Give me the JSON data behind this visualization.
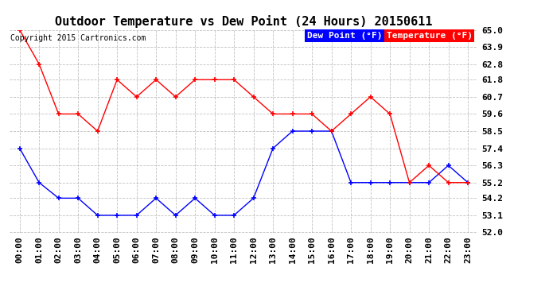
{
  "title": "Outdoor Temperature vs Dew Point (24 Hours) 20150611",
  "copyright": "Copyright 2015 Cartronics.com",
  "x_labels": [
    "00:00",
    "01:00",
    "02:00",
    "03:00",
    "04:00",
    "05:00",
    "06:00",
    "07:00",
    "08:00",
    "09:00",
    "10:00",
    "11:00",
    "12:00",
    "13:00",
    "14:00",
    "15:00",
    "16:00",
    "17:00",
    "18:00",
    "19:00",
    "20:00",
    "21:00",
    "22:00",
    "23:00"
  ],
  "temp_data": [
    65.0,
    62.8,
    59.6,
    59.6,
    58.5,
    61.8,
    60.7,
    61.8,
    60.7,
    61.8,
    61.8,
    61.8,
    60.7,
    59.6,
    59.6,
    59.6,
    58.5,
    59.6,
    60.7,
    59.6,
    55.2,
    56.3,
    55.2,
    55.2
  ],
  "dew_data": [
    57.4,
    55.2,
    54.2,
    54.2,
    53.1,
    53.1,
    53.1,
    54.2,
    53.1,
    54.2,
    53.1,
    53.1,
    54.2,
    57.4,
    58.5,
    58.5,
    58.5,
    55.2,
    55.2,
    55.2,
    55.2,
    55.2,
    56.3,
    55.2
  ],
  "temp_color": "#ff0000",
  "dew_color": "#0000ff",
  "bg_color": "#ffffff",
  "plot_bg": "#ffffff",
  "grid_color": "#b0b0b0",
  "ylim_min": 52.0,
  "ylim_max": 65.0,
  "yticks": [
    52.0,
    53.1,
    54.2,
    55.2,
    56.3,
    57.4,
    58.5,
    59.6,
    60.7,
    61.8,
    62.8,
    63.9,
    65.0
  ],
  "legend_dew_bg": "#0000ff",
  "legend_temp_bg": "#ff0000",
  "legend_dew_text": "Dew Point (°F)",
  "legend_temp_text": "Temperature (°F)",
  "title_fontsize": 11,
  "copyright_fontsize": 7,
  "tick_fontsize": 8,
  "legend_fontsize": 8
}
